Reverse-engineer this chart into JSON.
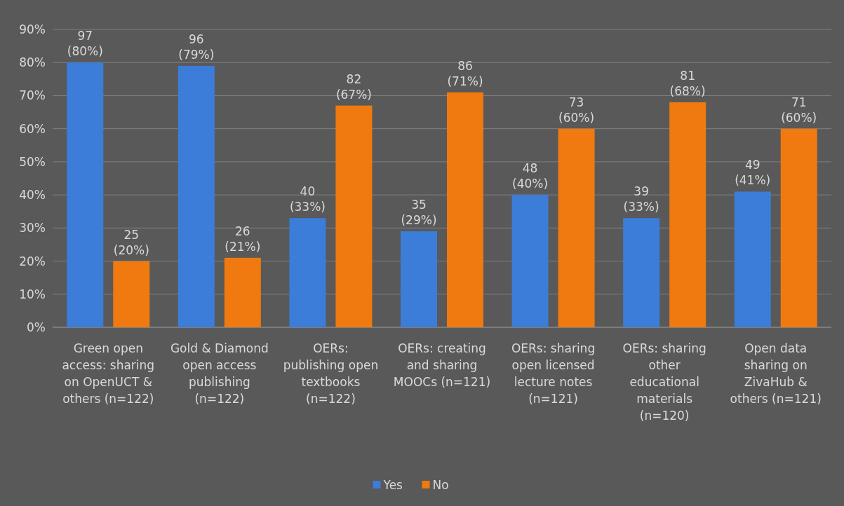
{
  "chart_data": {
    "type": "bar",
    "categories": [
      "Green open access: sharing on OpenUCT & others (n=122)",
      "Gold & Diamond open access publishing (n=122)",
      "OERs: publishing open textbooks (n=122)",
      "OERs: creating and sharing MOOCs (n=121)",
      "OERs: sharing open licensed lecture notes (n=121)",
      "OERs: sharing other educational materials (n=120)",
      "Open data sharing on ZivaHub & others (n=121)"
    ],
    "series": [
      {
        "name": "Yes",
        "color": "#3b7dd8",
        "values": [
          80,
          79,
          33,
          29,
          40,
          33,
          41
        ],
        "value_labels": [
          "97 (80%)",
          "96 (79%)",
          "40 (33%)",
          "35 (29%)",
          "48 (40%)",
          "39 (33%)",
          "49 (41%)"
        ]
      },
      {
        "name": "No",
        "color": "#f07a10",
        "values": [
          20,
          21,
          67,
          71,
          60,
          68,
          60
        ],
        "value_labels": [
          "25 (20%)",
          "26 (21%)",
          "82 (67%)",
          "86 (71%)",
          "73 (60%)",
          "81 (68%)",
          "71 (60%)"
        ]
      }
    ],
    "ylim": [
      0,
      90
    ],
    "yticks": [
      {
        "value": 0,
        "label": "0%"
      },
      {
        "value": 10,
        "label": "10%"
      },
      {
        "value": 20,
        "label": "20%"
      },
      {
        "value": 30,
        "label": "30%"
      },
      {
        "value": 40,
        "label": "40%"
      },
      {
        "value": 50,
        "label": "50%"
      },
      {
        "value": 60,
        "label": "60%"
      },
      {
        "value": 70,
        "label": "70%"
      },
      {
        "value": 80,
        "label": "80%"
      },
      {
        "value": 90,
        "label": "90%"
      }
    ],
    "grid": "y",
    "legend": "bottom"
  }
}
